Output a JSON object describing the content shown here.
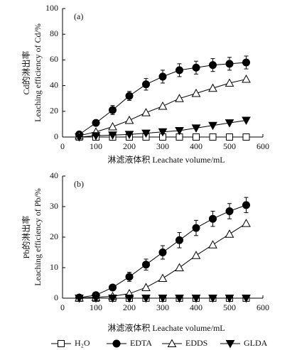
{
  "chart_data": [
    {
      "type": "line",
      "annotation": "(a)",
      "xlabel": "淋滤液体积 Leachate volume/mL",
      "ylabel": [
        "Cd的淋出率",
        "Leaching efficiency of Cd/%"
      ],
      "x": [
        50,
        100,
        150,
        200,
        250,
        300,
        350,
        400,
        450,
        500,
        550
      ],
      "xlim": [
        0,
        600
      ],
      "xticks": [
        0,
        100,
        200,
        300,
        400,
        500,
        600
      ],
      "ylim": [
        0,
        100
      ],
      "yticks": [
        0,
        20,
        40,
        60,
        80,
        100
      ],
      "series": [
        {
          "name": "H₂O",
          "marker": "square-open",
          "color": "#000",
          "values": [
            0,
            0,
            0,
            0,
            0,
            0,
            0,
            0,
            0,
            0,
            0
          ]
        },
        {
          "name": "EDTA",
          "marker": "circle-filled",
          "color": "#000",
          "values": [
            2,
            11,
            21,
            32,
            41,
            47,
            52,
            54,
            56,
            57,
            58
          ],
          "errors": [
            1,
            1.5,
            3.5,
            3.5,
            4.5,
            5,
            5,
            5,
            5,
            5,
            5
          ]
        },
        {
          "name": "EDDS",
          "marker": "triangle-open",
          "color": "#000",
          "values": [
            1,
            4,
            8,
            13,
            19,
            24,
            30,
            34,
            38,
            42,
            45
          ]
        },
        {
          "name": "GLDA",
          "marker": "triangle-down-filled",
          "color": "#000",
          "values": [
            0,
            1,
            1.5,
            2,
            3,
            4,
            5,
            7,
            9,
            11,
            13
          ]
        }
      ]
    },
    {
      "type": "line",
      "annotation": "(b)",
      "xlabel": "淋滤液体积 Leachate volume/mL",
      "ylabel": [
        "Pb的淋出率",
        "Leaching efficiency of Pb/%"
      ],
      "x": [
        50,
        100,
        150,
        200,
        250,
        300,
        350,
        400,
        450,
        500,
        550
      ],
      "xlim": [
        0,
        600
      ],
      "xticks": [
        0,
        100,
        200,
        300,
        400,
        500,
        600
      ],
      "ylim": [
        0,
        40
      ],
      "yticks": [
        0,
        10,
        20,
        30,
        40
      ],
      "series": [
        {
          "name": "H₂O",
          "marker": "square-open",
          "color": "#000",
          "values": [
            0,
            0,
            0,
            0,
            0,
            0,
            0,
            0,
            0,
            0,
            0
          ]
        },
        {
          "name": "EDTA",
          "marker": "circle-filled",
          "color": "#000",
          "values": [
            0.2,
            1,
            3.5,
            7,
            11,
            15,
            19,
            23,
            26,
            28.5,
            30.5
          ],
          "errors": [
            0.3,
            0.5,
            0.8,
            1.5,
            1.8,
            2.2,
            2.5,
            2.5,
            2.5,
            2.5,
            2.5
          ]
        },
        {
          "name": "EDDS",
          "marker": "triangle-open",
          "color": "#000",
          "values": [
            0.1,
            0.3,
            0.6,
            1.5,
            3.5,
            6.5,
            10,
            14,
            17.5,
            21,
            24.5
          ]
        },
        {
          "name": "GLDA",
          "marker": "triangle-down-filled",
          "color": "#000",
          "values": [
            0,
            0,
            0,
            0,
            0,
            0,
            0,
            0,
            0,
            0,
            0
          ]
        }
      ]
    }
  ]
}
